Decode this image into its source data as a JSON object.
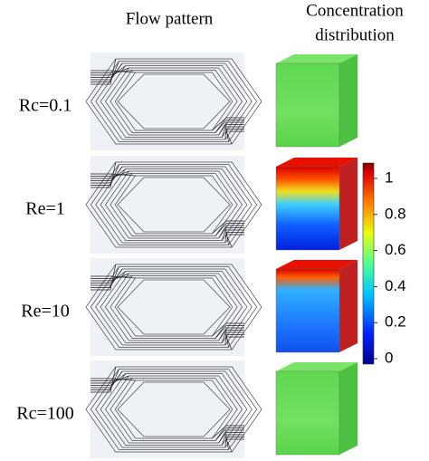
{
  "headers": {
    "flow": "Flow pattern",
    "concentration": [
      "Concentration",
      "distribution"
    ]
  },
  "rows": [
    {
      "label": "Rc=0.1"
    },
    {
      "label": "Re=1"
    },
    {
      "label": "Re=10"
    },
    {
      "label": "Rc=100"
    }
  ],
  "colorbar": {
    "ticks": [
      1,
      0.8,
      0.6,
      0.4,
      0.2,
      0
    ]
  }
}
